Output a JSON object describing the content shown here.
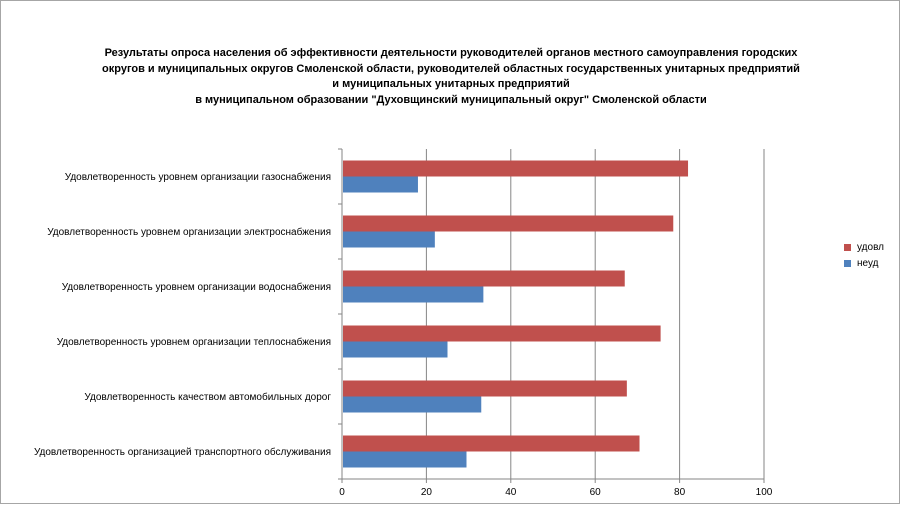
{
  "chart_data": {
    "type": "bar",
    "orientation": "horizontal",
    "title_lines": [
      "Результаты опроса населения об эффективности деятельности руководителей органов местного самоуправления городских",
      "округов и муниципальных округов Смоленской области, руководителей областных государственных унитарных предприятий",
      "и муниципальных унитарных предприятий",
      "в муниципальном образовании \"Духовщинский муниципальный округ\" Смоленской области"
    ],
    "categories": [
      "Удовлетворенность уровнем организации газоснабжения",
      "Удовлетворенность уровнем организации электроснабжения",
      "Удовлетворенность уровнем организации водоснабжения",
      "Удовлетворенность уровнем организации теплоснабжения",
      "Удовлетворенность качеством автомобильных дорог",
      "Удовлетворенность организацией транспортного обслуживания"
    ],
    "series": [
      {
        "name": "удовл",
        "color": "#c0504d",
        "values": [
          82,
          78.5,
          67,
          75.5,
          67.5,
          70.5
        ]
      },
      {
        "name": "неуд",
        "color": "#4f81bd",
        "values": [
          18,
          22,
          33.5,
          25,
          33,
          29.5
        ]
      }
    ],
    "xlim": [
      0,
      100
    ],
    "xticks": [
      "0",
      "20",
      "40",
      "60",
      "80",
      "100"
    ],
    "grid": true,
    "legend_position": "right",
    "gridline_color": "#868686",
    "axis_color": "#868686"
  }
}
